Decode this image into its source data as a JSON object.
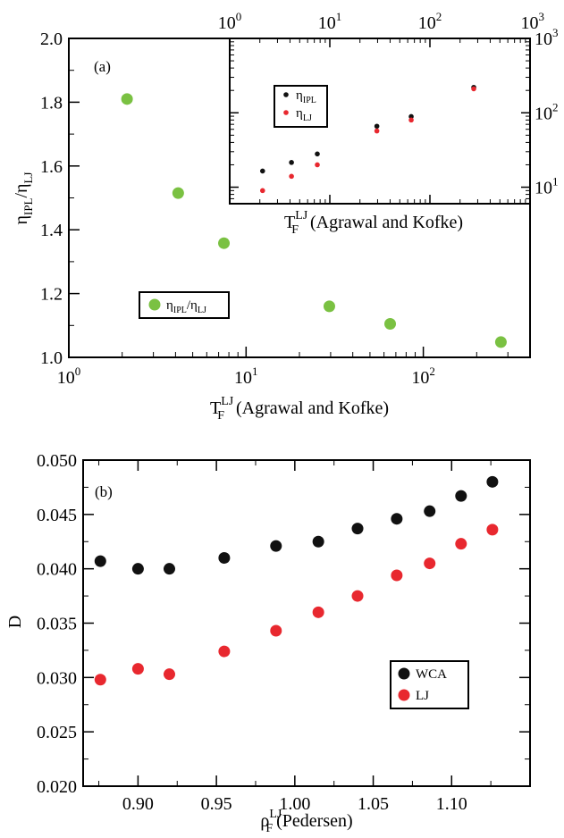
{
  "chart_data": [
    {
      "id": "a",
      "type": "scatter",
      "panel_label": "(a)",
      "xscale": "log",
      "xlim": [
        1,
        400
      ],
      "ylim": [
        1.0,
        2.0
      ],
      "xticks": [
        1,
        10,
        100
      ],
      "xtick_labels": [
        "10",
        "10",
        "10"
      ],
      "xtick_exps": [
        "0",
        "1",
        "2"
      ],
      "yticks": [
        1.0,
        1.2,
        1.4,
        1.6,
        1.8,
        2.0
      ],
      "ytick_labels": [
        "1.0",
        "1.2",
        "1.4",
        "1.6",
        "1.8",
        "2.0"
      ],
      "xlabel_main": "T",
      "xlabel_sub": "F",
      "xlabel_sup": "LJ",
      "xlabel_rest": " (Agrawal and Kofke)",
      "ylabel_main1": "η",
      "ylabel_sub1": "IPL",
      "ylabel_mid": "/η",
      "ylabel_sub2": "LJ",
      "legend_position": "bottom-left",
      "series": [
        {
          "name_main1": "η",
          "name_sub1": "IPL",
          "name_mid": "/η",
          "name_sub2": "LJ",
          "color": "#7ac142",
          "x": [
            2.13,
            4.14,
            7.5,
            29.5,
            65.0,
            274.0
          ],
          "y": [
            1.81,
            1.515,
            1.358,
            1.16,
            1.105,
            1.048
          ]
        }
      ]
    },
    {
      "id": "a-inset",
      "type": "scatter",
      "xscale": "log",
      "yscale": "log",
      "xlim": [
        1,
        1000
      ],
      "ylim": [
        6,
        1000
      ],
      "xticks": [
        1,
        10,
        100,
        1000
      ],
      "xtick_labels": [
        "10",
        "10",
        "10",
        "10"
      ],
      "xtick_exps": [
        "0",
        "1",
        "2",
        "3"
      ],
      "yticks": [
        10,
        100,
        1000
      ],
      "ytick_labels": [
        "10",
        "10",
        "10"
      ],
      "ytick_exps": [
        "1",
        "2",
        "3"
      ],
      "xlabel_main": "T",
      "xlabel_sub": "F",
      "xlabel_sup": "LJ",
      "xlabel_rest": " (Agrawal and Kofke)",
      "legend_position": "top-left",
      "series": [
        {
          "name_main": "η",
          "name_sub": "IPL",
          "color": "#111111",
          "x": [
            2.13,
            4.14,
            7.5,
            29.5,
            65.0,
            274.0
          ],
          "y": [
            16.5,
            21.5,
            28.0,
            66.0,
            89.0,
            220.0
          ]
        },
        {
          "name_main": "η",
          "name_sub": "LJ",
          "color": "#e8282f",
          "x": [
            2.13,
            4.14,
            7.5,
            29.5,
            65.0,
            274.0
          ],
          "y": [
            9.0,
            14.0,
            20.0,
            57.0,
            80.0,
            210.0
          ]
        }
      ]
    },
    {
      "id": "b",
      "type": "scatter",
      "panel_label": "(b)",
      "xlim": [
        0.865,
        1.15
      ],
      "ylim": [
        0.02,
        0.05
      ],
      "xticks": [
        0.9,
        0.95,
        1.0,
        1.05,
        1.1
      ],
      "xtick_labels": [
        "0.90",
        "0.95",
        "1.00",
        "1.05",
        "1.10"
      ],
      "yticks": [
        0.02,
        0.025,
        0.03,
        0.035,
        0.04,
        0.045,
        0.05
      ],
      "ytick_labels": [
        "0.020",
        "0.025",
        "0.030",
        "0.035",
        "0.040",
        "0.045",
        "0.050"
      ],
      "xlabel_main": "ρ",
      "xlabel_sub": "F",
      "xlabel_sup": "LJ",
      "xlabel_rest": "(Pedersen)",
      "ylabel": "D",
      "legend_position": "bottom-right",
      "series": [
        {
          "name": "WCA",
          "color": "#111111",
          "x": [
            0.876,
            0.9,
            0.92,
            0.955,
            0.988,
            1.015,
            1.04,
            1.065,
            1.086,
            1.106,
            1.126
          ],
          "y": [
            0.0407,
            0.04,
            0.04,
            0.041,
            0.0421,
            0.0425,
            0.0437,
            0.0446,
            0.0453,
            0.0467,
            0.048
          ]
        },
        {
          "name": "LJ",
          "color": "#e8282f",
          "x": [
            0.876,
            0.9,
            0.92,
            0.955,
            0.988,
            1.015,
            1.04,
            1.065,
            1.086,
            1.106,
            1.126
          ],
          "y": [
            0.0298,
            0.0308,
            0.0303,
            0.0324,
            0.0343,
            0.036,
            0.0375,
            0.0394,
            0.0405,
            0.0423,
            0.0436
          ]
        }
      ]
    }
  ]
}
